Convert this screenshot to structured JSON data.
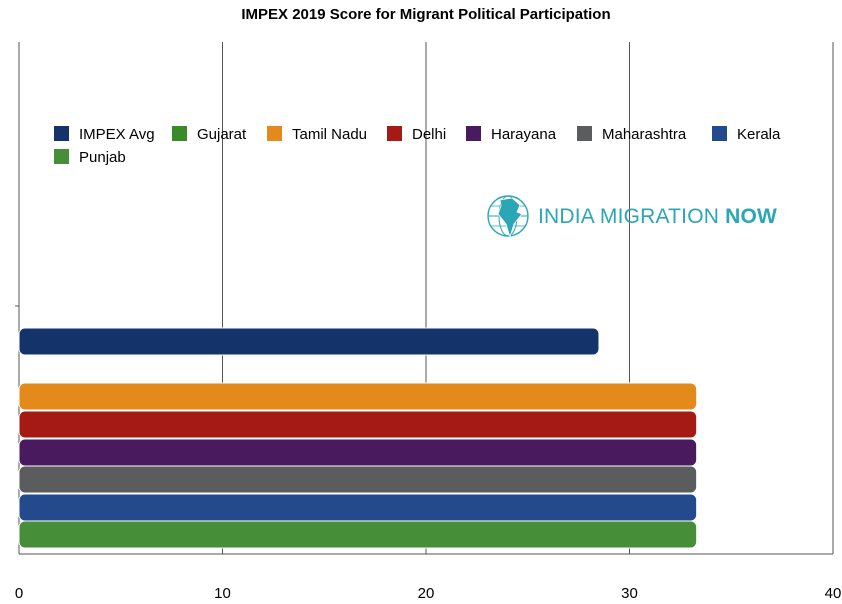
{
  "chart_data": {
    "type": "bar",
    "orientation": "horizontal",
    "title": "IMPEX 2019 Score for Migrant Political Participation",
    "xlabel": "",
    "ylabel": "",
    "xlim": [
      0,
      40
    ],
    "xticks": [
      0,
      10,
      20,
      30,
      40
    ],
    "grid": true,
    "legend_position": "top",
    "series": [
      {
        "name": "IMPEX Avg",
        "value": 28.5,
        "color": "#14336b"
      },
      {
        "name": "Gujarat",
        "value": 0,
        "color": "#3a8a2a"
      },
      {
        "name": "Tamil Nadu",
        "value": 33.3,
        "color": "#e48a1a"
      },
      {
        "name": "Delhi",
        "value": 33.3,
        "color": "#a51a14"
      },
      {
        "name": "Harayana",
        "value": 33.3,
        "color": "#4a1a5e"
      },
      {
        "name": "Maharashtra",
        "value": 33.3,
        "color": "#5a5c5e"
      },
      {
        "name": "Kerala",
        "value": 33.3,
        "color": "#234a8c"
      },
      {
        "name": "Punjab",
        "value": 33.3,
        "color": "#468e38"
      }
    ]
  },
  "logo": {
    "text_regular": "INDIA MIGRATION ",
    "text_bold": "NOW",
    "icon": "globe-india-icon",
    "color": "#2aa6b6"
  }
}
